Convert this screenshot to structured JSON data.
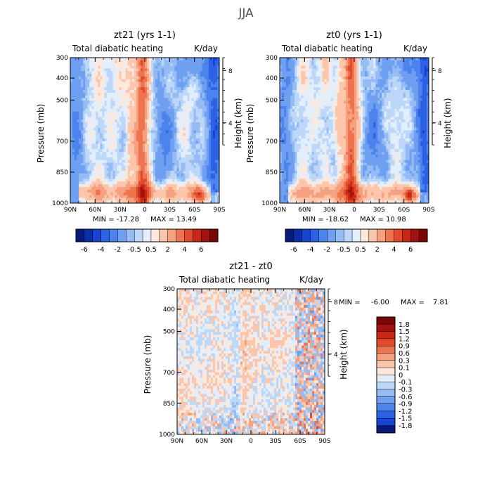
{
  "figure_title": "JJA",
  "chart_data": [
    {
      "type": "heatmap",
      "title": "zt21 (yrs 1-1)",
      "subtitle_left": "Total diabatic heating",
      "subtitle_right": "K/day",
      "xlabel": "",
      "ylabel": "Pressure (mb)",
      "y2label": "Height (km)",
      "x_ticks": [
        "90N",
        "60N",
        "30N",
        "0",
        "30S",
        "60S",
        "90S"
      ],
      "y_ticks": [
        "300",
        "400",
        "500",
        "700",
        "850",
        "1000"
      ],
      "y2_ticks": [
        "8",
        "4"
      ],
      "ylim": [
        1000,
        300
      ],
      "min_label": "MIN = -17.28",
      "max_label": "MAX = 13.49",
      "min": -17.28,
      "max": 13.49
    },
    {
      "type": "heatmap",
      "title": "zt0 (yrs 1-1)",
      "subtitle_left": "Total diabatic heating",
      "subtitle_right": "K/day",
      "xlabel": "",
      "ylabel": "Pressure (mb)",
      "y2label": "Height (km)",
      "x_ticks": [
        "90N",
        "60N",
        "30N",
        "0",
        "30S",
        "60S",
        "90S"
      ],
      "y_ticks": [
        "300",
        "400",
        "500",
        "700",
        "850",
        "1000"
      ],
      "y2_ticks": [
        "8",
        "4"
      ],
      "ylim": [
        1000,
        300
      ],
      "min_label": "MIN = -18.62",
      "max_label": "MAX = 10.98",
      "min": -18.62,
      "max": 10.98
    },
    {
      "type": "heatmap",
      "title": "zt21 - zt0",
      "subtitle_left": "Total diabatic heating",
      "subtitle_right": "K/day",
      "xlabel": "",
      "ylabel": "Pressure (mb)",
      "y2label": "Height (km)",
      "x_ticks": [
        "90N",
        "60N",
        "30N",
        "0",
        "30S",
        "60S",
        "90S"
      ],
      "y_ticks": [
        "300",
        "400",
        "500",
        "700",
        "850",
        "1000"
      ],
      "y2_ticks": [
        "8",
        "4"
      ],
      "ylim": [
        1000,
        300
      ],
      "min_label": "MIN =",
      "min_value": "-6.00",
      "max_label": "MAX =",
      "max_value": "7.81",
      "min": -6.0,
      "max": 7.81
    }
  ],
  "colorbar_top": {
    "labels": [
      "-6",
      "-4",
      "-2",
      "-0.5",
      "0.5",
      "2",
      "4",
      "6"
    ],
    "colors": [
      "#081a7a",
      "#0c2ea8",
      "#1745d1",
      "#2b62e6",
      "#4c83ec",
      "#6f9ff0",
      "#95bcf4",
      "#bdd7f8",
      "#e2eefb",
      "#fde8dc",
      "#fbc6ac",
      "#f5a07e",
      "#ee7450",
      "#e24a2c",
      "#c82818",
      "#a51111",
      "#7a0606"
    ]
  },
  "colorbar_diff": {
    "labels": [
      "1.8",
      "1.5",
      "1.2",
      "0.9",
      "0.6",
      "0.3",
      "0.1",
      "0",
      "-0.1",
      "-0.3",
      "-0.6",
      "-0.9",
      "-1.2",
      "-1.5",
      "-1.8"
    ],
    "colors": [
      "#7a0606",
      "#a51111",
      "#c82818",
      "#e24a2c",
      "#ee7450",
      "#f5a07e",
      "#fbc6ac",
      "#fde8dc",
      "#e2eefb",
      "#bdd7f8",
      "#95bcf4",
      "#6f9ff0",
      "#4c83ec",
      "#2b62e6",
      "#1745d1",
      "#081a7a"
    ]
  }
}
